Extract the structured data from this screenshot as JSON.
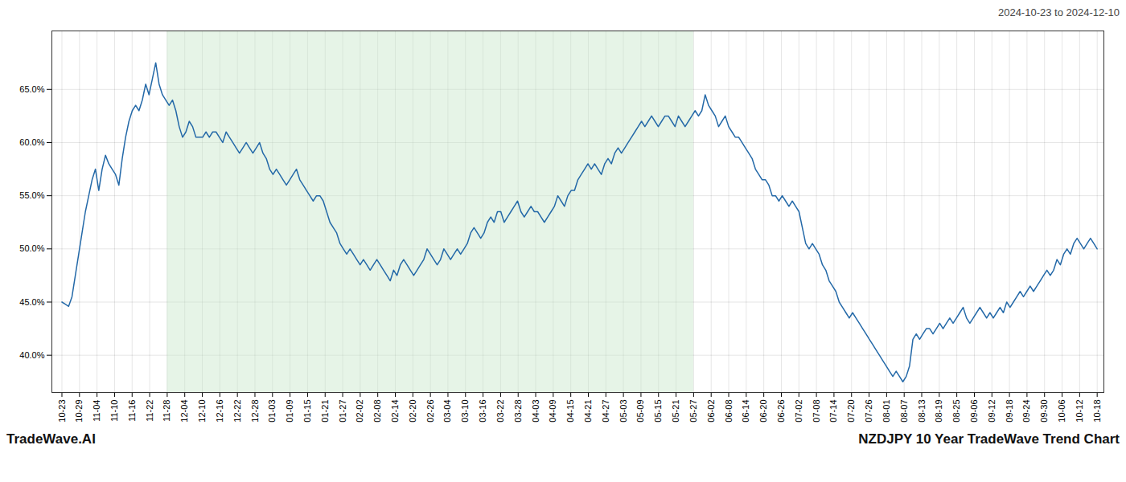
{
  "chart_data": {
    "type": "line",
    "title": "NZDJPY 10 Year TradeWave Trend Chart",
    "subtitle": "2024-10-23 to 2024-12-10",
    "caption": "TradeWave.AI",
    "color": "#2469a8",
    "grid": true,
    "highlight": {
      "x0": 31.423729,
      "x1": 188.542373,
      "color": "#c8e6c9"
    },
    "xlim": [
      -3,
      311
    ],
    "xticks": [
      {
        "value": 0,
        "label": "10-23"
      },
      {
        "value": 5.237288,
        "label": "10-29"
      },
      {
        "value": 10.474576,
        "label": "11-04"
      },
      {
        "value": 15.711864,
        "label": "11-10"
      },
      {
        "value": 20.949153,
        "label": "11-16"
      },
      {
        "value": 26.186441,
        "label": "11-22"
      },
      {
        "value": 31.423729,
        "label": "11-28"
      },
      {
        "value": 36.661017,
        "label": "12-04"
      },
      {
        "value": 41.898305,
        "label": "12-10"
      },
      {
        "value": 47.135593,
        "label": "12-16"
      },
      {
        "value": 52.372881,
        "label": "12-22"
      },
      {
        "value": 57.610169,
        "label": "12-28"
      },
      {
        "value": 62.847458,
        "label": "01-03"
      },
      {
        "value": 68.084746,
        "label": "01-09"
      },
      {
        "value": 73.322034,
        "label": "01-15"
      },
      {
        "value": 78.559322,
        "label": "01-21"
      },
      {
        "value": 83.79661,
        "label": "01-27"
      },
      {
        "value": 89.033898,
        "label": "02-02"
      },
      {
        "value": 94.271186,
        "label": "02-08"
      },
      {
        "value": 99.508475,
        "label": "02-14"
      },
      {
        "value": 104.745763,
        "label": "02-20"
      },
      {
        "value": 109.983051,
        "label": "02-26"
      },
      {
        "value": 115.220339,
        "label": "03-04"
      },
      {
        "value": 120.457627,
        "label": "03-10"
      },
      {
        "value": 125.694915,
        "label": "03-16"
      },
      {
        "value": 130.932203,
        "label": "03-22"
      },
      {
        "value": 136.169492,
        "label": "03-28"
      },
      {
        "value": 141.40678,
        "label": "04-03"
      },
      {
        "value": 146.644068,
        "label": "04-09"
      },
      {
        "value": 151.881356,
        "label": "04-15"
      },
      {
        "value": 157.118644,
        "label": "04-21"
      },
      {
        "value": 162.355932,
        "label": "04-27"
      },
      {
        "value": 167.59322,
        "label": "05-03"
      },
      {
        "value": 172.830508,
        "label": "05-09"
      },
      {
        "value": 178.067797,
        "label": "05-15"
      },
      {
        "value": 183.305085,
        "label": "05-21"
      },
      {
        "value": 188.542373,
        "label": "05-27"
      },
      {
        "value": 193.779661,
        "label": "06-02"
      },
      {
        "value": 199.016949,
        "label": "06-08"
      },
      {
        "value": 204.254237,
        "label": "06-14"
      },
      {
        "value": 209.491525,
        "label": "06-20"
      },
      {
        "value": 214.728814,
        "label": "06-26"
      },
      {
        "value": 219.966102,
        "label": "07-02"
      },
      {
        "value": 225.20339,
        "label": "07-08"
      },
      {
        "value": 230.440678,
        "label": "07-14"
      },
      {
        "value": 235.677966,
        "label": "07-20"
      },
      {
        "value": 240.915254,
        "label": "07-26"
      },
      {
        "value": 246.152542,
        "label": "08-01"
      },
      {
        "value": 251.389831,
        "label": "08-07"
      },
      {
        "value": 256.627119,
        "label": "08-13"
      },
      {
        "value": 261.864407,
        "label": "08-19"
      },
      {
        "value": 267.101695,
        "label": "08-25"
      },
      {
        "value": 272.338983,
        "label": "09-06"
      },
      {
        "value": 277.576271,
        "label": "09-12"
      },
      {
        "value": 282.813559,
        "label": "09-18"
      },
      {
        "value": 288.050847,
        "label": "09-24"
      },
      {
        "value": 293.288136,
        "label": "09-30"
      },
      {
        "value": 298.525424,
        "label": "10-06"
      },
      {
        "value": 303.762712,
        "label": "10-12"
      },
      {
        "value": 309,
        "label": "10-18"
      }
    ],
    "ylim": [
      36.5,
      70.5
    ],
    "yticks": [
      {
        "value": 40.0,
        "label": "40.0%"
      },
      {
        "value": 45.0,
        "label": "45.0%"
      },
      {
        "value": 50.0,
        "label": "50.0%"
      },
      {
        "value": 55.0,
        "label": "55.0%"
      },
      {
        "value": 60.0,
        "label": "60.0%"
      },
      {
        "value": 65.0,
        "label": "65.0%"
      }
    ],
    "x": [
      0,
      1,
      2,
      3,
      4,
      5,
      6,
      7,
      8,
      9,
      10,
      11,
      12,
      13,
      14,
      15,
      16,
      17,
      18,
      19,
      20,
      21,
      22,
      23,
      24,
      25,
      26,
      27,
      28,
      29,
      30,
      31,
      32,
      33,
      34,
      35,
      36,
      37,
      38,
      39,
      40,
      41,
      42,
      43,
      44,
      45,
      46,
      47,
      48,
      49,
      50,
      51,
      52,
      53,
      54,
      55,
      56,
      57,
      58,
      59,
      60,
      61,
      62,
      63,
      64,
      65,
      66,
      67,
      68,
      69,
      70,
      71,
      72,
      73,
      74,
      75,
      76,
      77,
      78,
      79,
      80,
      81,
      82,
      83,
      84,
      85,
      86,
      87,
      88,
      89,
      90,
      91,
      92,
      93,
      94,
      95,
      96,
      97,
      98,
      99,
      100,
      101,
      102,
      103,
      104,
      105,
      106,
      107,
      108,
      109,
      110,
      111,
      112,
      113,
      114,
      115,
      116,
      117,
      118,
      119,
      120,
      121,
      122,
      123,
      124,
      125,
      126,
      127,
      128,
      129,
      130,
      131,
      132,
      133,
      134,
      135,
      136,
      137,
      138,
      139,
      140,
      141,
      142,
      143,
      144,
      145,
      146,
      147,
      148,
      149,
      150,
      151,
      152,
      153,
      154,
      155,
      156,
      157,
      158,
      159,
      160,
      161,
      162,
      163,
      164,
      165,
      166,
      167,
      168,
      169,
      170,
      171,
      172,
      173,
      174,
      175,
      176,
      177,
      178,
      179,
      180,
      181,
      182,
      183,
      184,
      185,
      186,
      187,
      188,
      189,
      190,
      191,
      192,
      193,
      194,
      195,
      196,
      197,
      198,
      199,
      200,
      201,
      202,
      203,
      204,
      205,
      206,
      207,
      208,
      209,
      210,
      211,
      212,
      213,
      214,
      215,
      216,
      217,
      218,
      219,
      220,
      221,
      222,
      223,
      224,
      225,
      226,
      227,
      228,
      229,
      230,
      231,
      232,
      233,
      234,
      235,
      236,
      237,
      238,
      239,
      240,
      241,
      242,
      243,
      244,
      245,
      246,
      247,
      248,
      249,
      250,
      251,
      252,
      253,
      254,
      255,
      256,
      257,
      258,
      259,
      260,
      261,
      262,
      263,
      264,
      265,
      266,
      267,
      268,
      269,
      270,
      271,
      272,
      273,
      274,
      275,
      276,
      277,
      278,
      279,
      280,
      281,
      282,
      283,
      284,
      285,
      286,
      287,
      288,
      289,
      290,
      291,
      292,
      293,
      294,
      295,
      296,
      297,
      298,
      299,
      300,
      301,
      302,
      303,
      304,
      305,
      306,
      307,
      308,
      309
    ],
    "values": [
      45.0,
      44.8,
      44.6,
      45.5,
      47.5,
      49.5,
      51.5,
      53.5,
      55.0,
      56.5,
      57.5,
      55.5,
      57.5,
      58.8,
      58.0,
      57.5,
      57.0,
      56.0,
      58.5,
      60.5,
      62.0,
      63.0,
      63.5,
      63.0,
      64.0,
      65.5,
      64.5,
      66.0,
      67.5,
      65.5,
      64.5,
      64.0,
      63.5,
      64.0,
      63.0,
      61.5,
      60.5,
      61.0,
      62.0,
      61.5,
      60.5,
      60.5,
      60.5,
      61.0,
      60.5,
      61.0,
      61.0,
      60.5,
      60.0,
      61.0,
      60.5,
      60.0,
      59.5,
      59.0,
      59.5,
      60.0,
      59.5,
      59.0,
      59.5,
      60.0,
      59.0,
      58.5,
      57.5,
      57.0,
      57.5,
      57.0,
      56.5,
      56.0,
      56.5,
      57.0,
      57.5,
      56.5,
      56.0,
      55.5,
      55.0,
      54.5,
      55.0,
      55.0,
      54.5,
      53.5,
      52.5,
      52.0,
      51.5,
      50.5,
      50.0,
      49.5,
      50.0,
      49.5,
      49.0,
      48.5,
      49.0,
      48.5,
      48.0,
      48.5,
      49.0,
      48.5,
      48.0,
      47.5,
      47.0,
      48.0,
      47.5,
      48.5,
      49.0,
      48.5,
      48.0,
      47.5,
      48.0,
      48.5,
      49.0,
      50.0,
      49.5,
      49.0,
      48.5,
      49.0,
      50.0,
      49.5,
      49.0,
      49.5,
      50.0,
      49.5,
      50.0,
      50.5,
      51.5,
      52.0,
      51.5,
      51.0,
      51.5,
      52.5,
      53.0,
      52.5,
      53.5,
      53.5,
      52.5,
      53.0,
      53.5,
      54.0,
      54.5,
      53.5,
      53.0,
      53.5,
      54.0,
      53.5,
      53.5,
      53.0,
      52.5,
      53.0,
      53.5,
      54.0,
      55.0,
      54.5,
      54.0,
      55.0,
      55.5,
      55.5,
      56.5,
      57.0,
      57.5,
      58.0,
      57.5,
      58.0,
      57.5,
      57.0,
      58.0,
      58.5,
      58.0,
      59.0,
      59.5,
      59.0,
      59.5,
      60.0,
      60.5,
      61.0,
      61.5,
      62.0,
      61.5,
      62.0,
      62.5,
      62.0,
      61.5,
      62.0,
      62.5,
      62.5,
      62.0,
      61.5,
      62.5,
      62.0,
      61.5,
      62.0,
      62.5,
      63.0,
      62.5,
      63.0,
      64.5,
      63.5,
      63.0,
      62.5,
      61.5,
      62.0,
      62.5,
      61.5,
      61.0,
      60.5,
      60.5,
      60.0,
      59.5,
      59.0,
      58.5,
      57.5,
      57.0,
      56.5,
      56.5,
      56.0,
      55.0,
      55.0,
      54.5,
      55.0,
      54.5,
      54.0,
      54.5,
      54.0,
      53.5,
      52.0,
      50.5,
      50.0,
      50.5,
      50.0,
      49.5,
      48.5,
      48.0,
      47.0,
      46.5,
      46.0,
      45.0,
      44.5,
      44.0,
      43.5,
      44.0,
      43.5,
      43.0,
      42.5,
      42.0,
      41.5,
      41.0,
      40.5,
      40.0,
      39.5,
      39.0,
      38.5,
      38.0,
      38.5,
      38.0,
      37.5,
      38.0,
      39.0,
      41.5,
      42.0,
      41.5,
      42.0,
      42.5,
      42.5,
      42.0,
      42.5,
      43.0,
      42.5,
      43.0,
      43.5,
      43.0,
      43.5,
      44.0,
      44.5,
      43.5,
      43.0,
      43.5,
      44.0,
      44.5,
      44.0,
      43.5,
      44.0,
      43.5,
      44.0,
      44.5,
      44.0,
      45.0,
      44.5,
      45.0,
      45.5,
      46.0,
      45.5,
      46.0,
      46.5,
      46.0,
      46.5,
      47.0,
      47.5,
      48.0,
      47.5,
      48.0,
      49.0,
      48.5,
      49.5,
      50.0,
      49.5,
      50.5,
      51.0,
      50.5,
      50.0,
      50.5,
      51.0,
      50.5,
      50.0
    ]
  }
}
